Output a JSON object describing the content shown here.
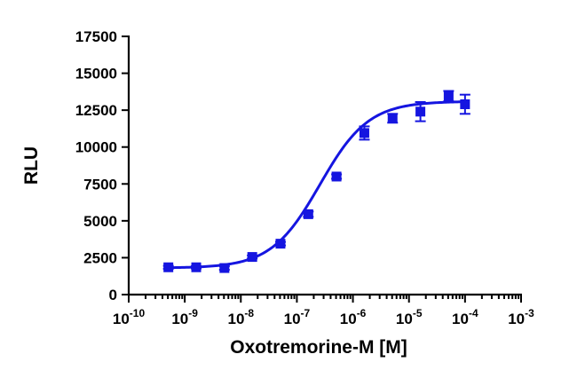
{
  "chart_data": {
    "type": "scatter",
    "xlabel": "Oxotremorine-M [M]",
    "ylabel": "RLU",
    "x_scale": "log",
    "xlim": [
      1e-10,
      0.001
    ],
    "ylim": [
      0,
      17500
    ],
    "x_ticks": [
      1e-10,
      1e-09,
      1e-08,
      1e-07,
      1e-06,
      1e-05,
      0.0001,
      0.001
    ],
    "x_tick_labels": [
      {
        "base": "10",
        "exp": "-10"
      },
      {
        "base": "10",
        "exp": "-9"
      },
      {
        "base": "10",
        "exp": "-8"
      },
      {
        "base": "10",
        "exp": "-7"
      },
      {
        "base": "10",
        "exp": "-6"
      },
      {
        "base": "10",
        "exp": "-5"
      },
      {
        "base": "10",
        "exp": "-4"
      },
      {
        "base": "10",
        "exp": "-3"
      }
    ],
    "y_ticks": [
      0,
      2500,
      5000,
      7500,
      10000,
      12500,
      15000,
      17500
    ],
    "y_tick_labels": [
      "0",
      "2500",
      "5000",
      "7500",
      "10000",
      "12500",
      "15000",
      "17500"
    ],
    "grid": false,
    "legend": "none",
    "color": "#1515e0",
    "series": [
      {
        "x": [
          5.1e-10,
          1.6e-09,
          5.1e-09,
          1.6e-08,
          5.1e-08,
          1.6e-07,
          5.1e-07,
          1.6e-06,
          5.1e-06,
          1.6e-05,
          5.1e-05,
          0.0001
        ],
        "y": [
          1850,
          1850,
          1800,
          2550,
          3450,
          5450,
          8000,
          10950,
          11950,
          12400,
          13450,
          12900
        ],
        "y_err": [
          100,
          80,
          120,
          100,
          120,
          180,
          150,
          450,
          300,
          650,
          350,
          650
        ]
      }
    ],
    "fit": {
      "type": "sigmoidal-dose-response",
      "bottom": 1800,
      "top": 13100,
      "log_ec50": -6.59,
      "hill": 1.0
    }
  }
}
